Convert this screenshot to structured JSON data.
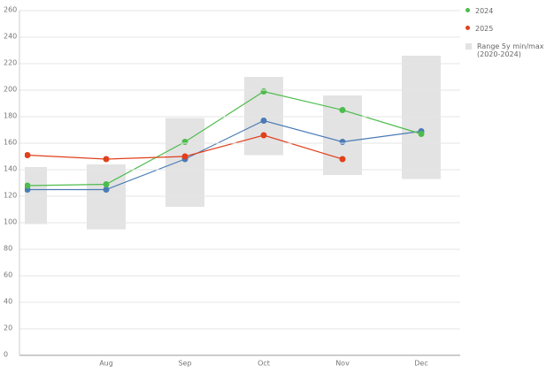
{
  "chart_data": {
    "type": "line",
    "categories": [
      null,
      "Aug",
      "Sep",
      "Oct",
      "Nov",
      "Dec"
    ],
    "series": [
      {
        "color": "#4a7bb5",
        "values": [
          125,
          125,
          148,
          177,
          161,
          169
        ]
      },
      {
        "name": "2024",
        "color": "#4cbc4c",
        "values": [
          128,
          129,
          161,
          199,
          185,
          167
        ]
      },
      {
        "name": "2025",
        "color": "#e0401c",
        "values": [
          151,
          148,
          150,
          166,
          148,
          null
        ]
      }
    ],
    "range": {
      "name": "Range 5y min/max (2020-2024)",
      "color": "#e3e3e3",
      "low": [
        99,
        95,
        112,
        151,
        136,
        133
      ],
      "high": [
        142,
        144,
        179,
        210,
        196,
        226
      ]
    },
    "ylim": [
      0,
      260
    ],
    "yticks": [
      0,
      20,
      40,
      60,
      80,
      100,
      120,
      140,
      160,
      180,
      200,
      220,
      240,
      260
    ],
    "grid": true
  }
}
